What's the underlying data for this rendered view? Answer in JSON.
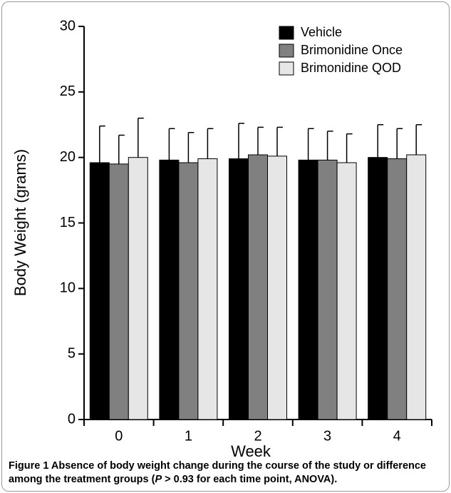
{
  "chart_data": {
    "type": "bar",
    "ylabel": "Body Weight (grams)",
    "xlabel": "Week",
    "categories": [
      "0",
      "1",
      "2",
      "3",
      "4"
    ],
    "series": [
      {
        "name": "Vehicle",
        "color": "#000000",
        "values": [
          19.6,
          19.8,
          19.9,
          19.8,
          20.0
        ],
        "errors": [
          2.8,
          2.4,
          2.7,
          2.4,
          2.5
        ]
      },
      {
        "name": "Brimonidine Once",
        "color": "#808080",
        "values": [
          19.5,
          19.6,
          20.2,
          19.8,
          19.9
        ],
        "errors": [
          2.2,
          2.3,
          2.1,
          2.2,
          2.3
        ]
      },
      {
        "name": "Brimonidine QOD",
        "color": "#e6e6e6",
        "values": [
          20.0,
          19.9,
          20.1,
          19.6,
          20.2
        ],
        "errors": [
          3.0,
          2.3,
          2.2,
          2.2,
          2.3
        ]
      }
    ],
    "ylim": [
      0,
      30
    ],
    "yticks": [
      0,
      5,
      10,
      15,
      20,
      25,
      30
    ],
    "legend": "upper right",
    "grid": false
  },
  "caption": {
    "label": "Figure 1",
    "text": "Absence of body weight change during the course of the study or difference among the treatment groups (",
    "italic": "P",
    "text2": " > 0.93 for each time point, ANOVA)."
  }
}
